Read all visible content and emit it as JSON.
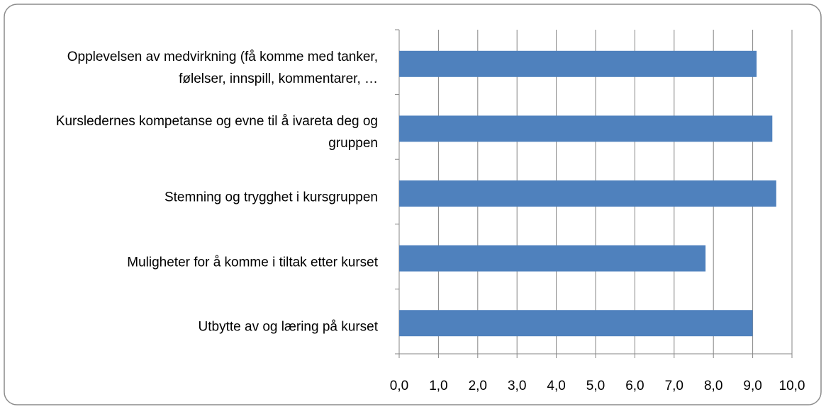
{
  "chart_data": {
    "type": "barh",
    "categories": [
      "Opplevelsen av medvirkning (få komme  med tanker, følelser, innspill, kommentarer, …",
      "Kursledernes kompetanse og evne til å ivareta deg og gruppen",
      "Stemning og trygghet i kursgruppen",
      "Muligheter for å komme  i tiltak  etter kurset",
      "Utbytte  av og læring på kurset"
    ],
    "values": [
      9.1,
      9.5,
      9.6,
      7.8,
      9.0
    ],
    "color": "#4f81bd",
    "xlim": [
      0,
      10
    ],
    "xticks": [
      {
        "value": 0,
        "label": "0,0"
      },
      {
        "value": 1,
        "label": "1,0"
      },
      {
        "value": 2,
        "label": "2,0"
      },
      {
        "value": 3,
        "label": "3,0"
      },
      {
        "value": 4,
        "label": "4,0"
      },
      {
        "value": 5,
        "label": "5,0"
      },
      {
        "value": 6,
        "label": "6,0"
      },
      {
        "value": 7,
        "label": "7,0"
      },
      {
        "value": 8,
        "label": "8,0"
      },
      {
        "value": 9,
        "label": "9,0"
      },
      {
        "value": 10,
        "label": "10,0"
      }
    ],
    "grid": true
  }
}
